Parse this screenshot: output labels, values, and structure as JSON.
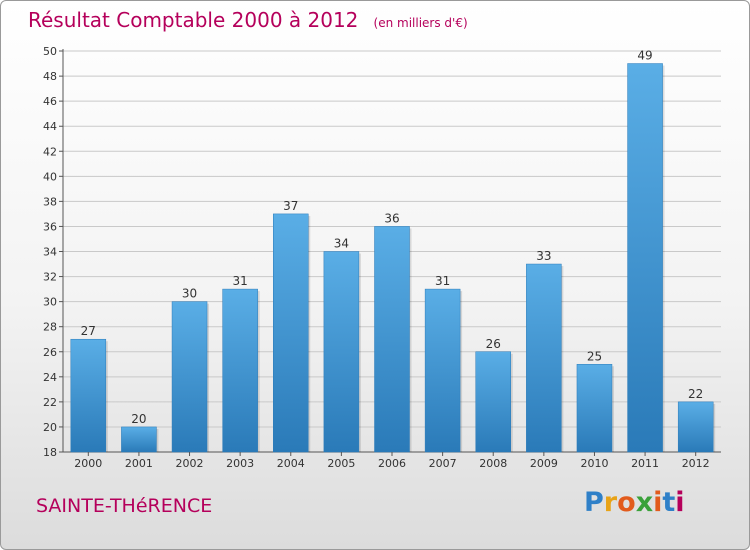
{
  "chart_data": {
    "type": "bar",
    "title": "Résultat Comptable 2000 à 2012",
    "subtitle": "(en milliers d'€)",
    "categories": [
      "2000",
      "2001",
      "2002",
      "2003",
      "2004",
      "2005",
      "2006",
      "2007",
      "2008",
      "2009",
      "2010",
      "2011",
      "2012"
    ],
    "values": [
      27,
      20,
      30,
      31,
      37,
      34,
      36,
      31,
      26,
      33,
      25,
      49,
      22
    ],
    "ylim": [
      18,
      50
    ],
    "yticks": [
      18,
      20,
      22,
      24,
      26,
      28,
      30,
      32,
      34,
      36,
      38,
      40,
      42,
      44,
      46,
      48,
      50
    ],
    "grid": true,
    "xlabel": "",
    "ylabel": ""
  },
  "commune": "SAINTE-THéRENCE",
  "logo": {
    "letters": [
      "P",
      "r",
      "o",
      "x",
      "i",
      "t",
      "i"
    ],
    "colors": [
      "#2f80c8",
      "#e8a317",
      "#e25b1c",
      "#3aa13a",
      "#e25b1c",
      "#2f80c8",
      "#b5005b"
    ]
  },
  "colors": {
    "bar_top": "#5aaee6",
    "bar_bottom": "#2a7ab8",
    "accent": "#b5005b"
  }
}
